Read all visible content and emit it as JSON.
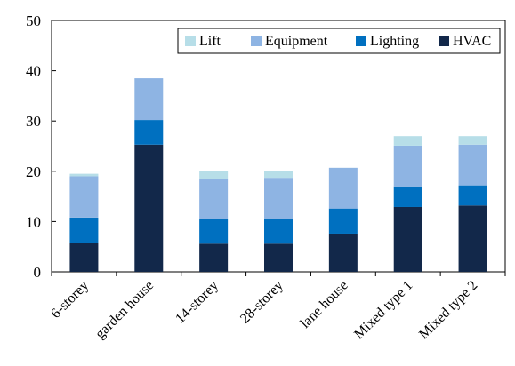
{
  "chart_data": {
    "type": "bar",
    "stacked": true,
    "title": "",
    "xlabel": "",
    "ylabel": "",
    "ylim": [
      0,
      50
    ],
    "yticks": [
      0,
      10,
      20,
      30,
      40,
      50
    ],
    "grid": false,
    "legend_position": "top-right",
    "legend_order": [
      "Lift",
      "Equipment",
      "Lighting",
      "HVAC"
    ],
    "categories": [
      "6-storey",
      "garden house",
      "14-storey",
      "28-storey",
      "lane house",
      "Mixed type 1",
      "Mixed type 2"
    ],
    "series": [
      {
        "name": "HVAC",
        "color": "#12284a",
        "values": [
          5.8,
          25.3,
          5.6,
          5.6,
          7.6,
          12.9,
          13.2
        ]
      },
      {
        "name": "Lighting",
        "color": "#0070c0",
        "values": [
          5.0,
          4.9,
          4.9,
          5.0,
          5.0,
          4.1,
          4.0
        ]
      },
      {
        "name": "Equipment",
        "color": "#8eb4e3",
        "values": [
          8.2,
          8.3,
          8.0,
          8.1,
          8.1,
          8.1,
          8.1
        ]
      },
      {
        "name": "Lift",
        "color": "#b7dee8",
        "values": [
          0.5,
          0.0,
          1.5,
          1.3,
          0.0,
          1.9,
          1.7
        ]
      }
    ]
  }
}
